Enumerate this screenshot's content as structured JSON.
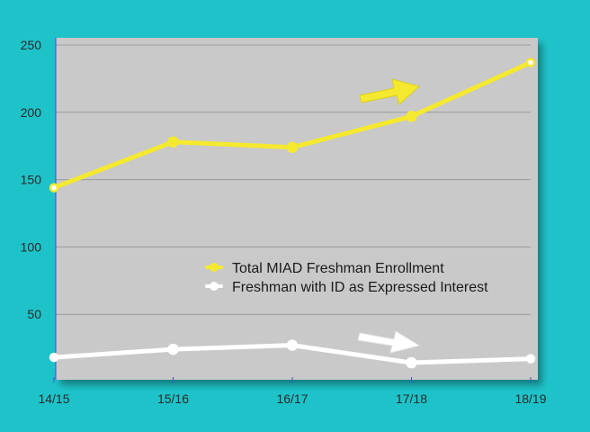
{
  "colors": {
    "background": "#1ec3c9",
    "plot_area": "#c9c9c9",
    "gridline": "#9a9a9a",
    "enrollment": "#f5e92f",
    "interest": "#ffffff"
  },
  "chart_data": {
    "type": "line",
    "title": "",
    "xlabel": "",
    "ylabel": "",
    "categories": [
      "14/15",
      "15/16",
      "16/17",
      "17/18",
      "18/19"
    ],
    "ylim": [
      0,
      250
    ],
    "yticks": [
      "50",
      "100",
      "150",
      "200",
      "250"
    ],
    "grid": true,
    "legend_position": "center",
    "series": [
      {
        "name": "Total MIAD Freshman Enrollment",
        "color": "#f5e92f",
        "values": [
          144,
          178,
          174,
          197,
          237
        ]
      },
      {
        "name": "Freshman with ID as Expressed Interest",
        "color": "#ffffff",
        "values": [
          18,
          24,
          27,
          14,
          17
        ]
      }
    ],
    "annotations": [
      {
        "type": "arrow",
        "color": "#f5e92f",
        "direction": "up-right",
        "series": 0
      },
      {
        "type": "arrow",
        "color": "#ffffff",
        "direction": "down-right",
        "series": 1
      }
    ]
  }
}
